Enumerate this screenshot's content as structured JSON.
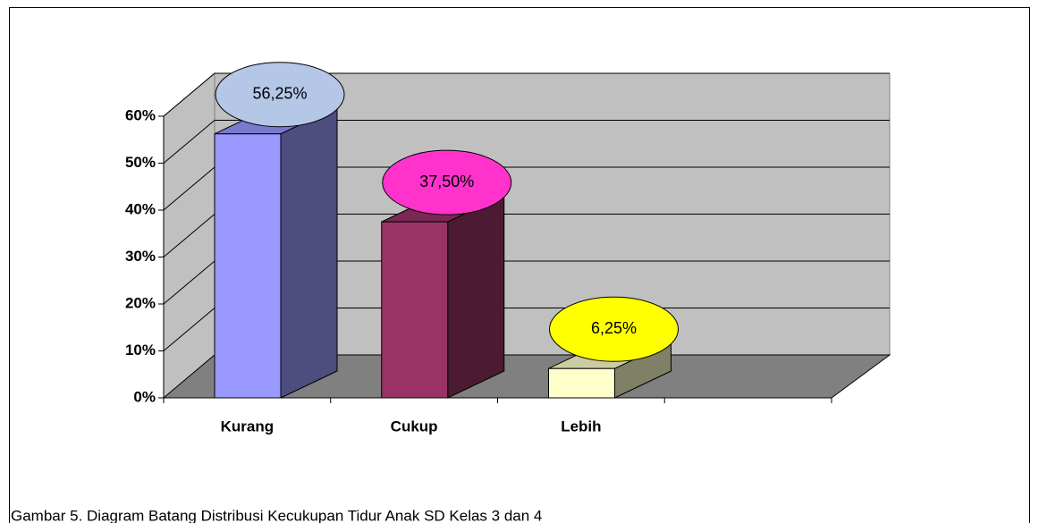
{
  "chart_data": {
    "type": "bar3d",
    "categories": [
      "Kurang",
      "Cukup",
      "Lebih",
      null
    ],
    "values": [
      56.25,
      37.5,
      6.25,
      null
    ],
    "value_labels": [
      "56,25%",
      "37,50%",
      "6,25%",
      null
    ],
    "colors": [
      "#9999ff",
      "#993366",
      "#ffffcc",
      null
    ],
    "label_colors": [
      "#b4c7e7",
      "#ff33cc",
      "#ffff00",
      null
    ],
    "ylim": [
      0,
      60
    ],
    "yticks": [
      {
        "value": 0,
        "label": "0%"
      },
      {
        "value": 10,
        "label": "10%"
      },
      {
        "value": 20,
        "label": "20%"
      },
      {
        "value": 30,
        "label": "30%"
      },
      {
        "value": 40,
        "label": "40%"
      },
      {
        "value": 50,
        "label": "50%"
      },
      {
        "value": 60,
        "label": "60%"
      }
    ],
    "grid": true,
    "caption": "Gambar 5. Diagram Batang Distribusi Kecukupan Tidur Anak SD Kelas 3 dan 4"
  }
}
